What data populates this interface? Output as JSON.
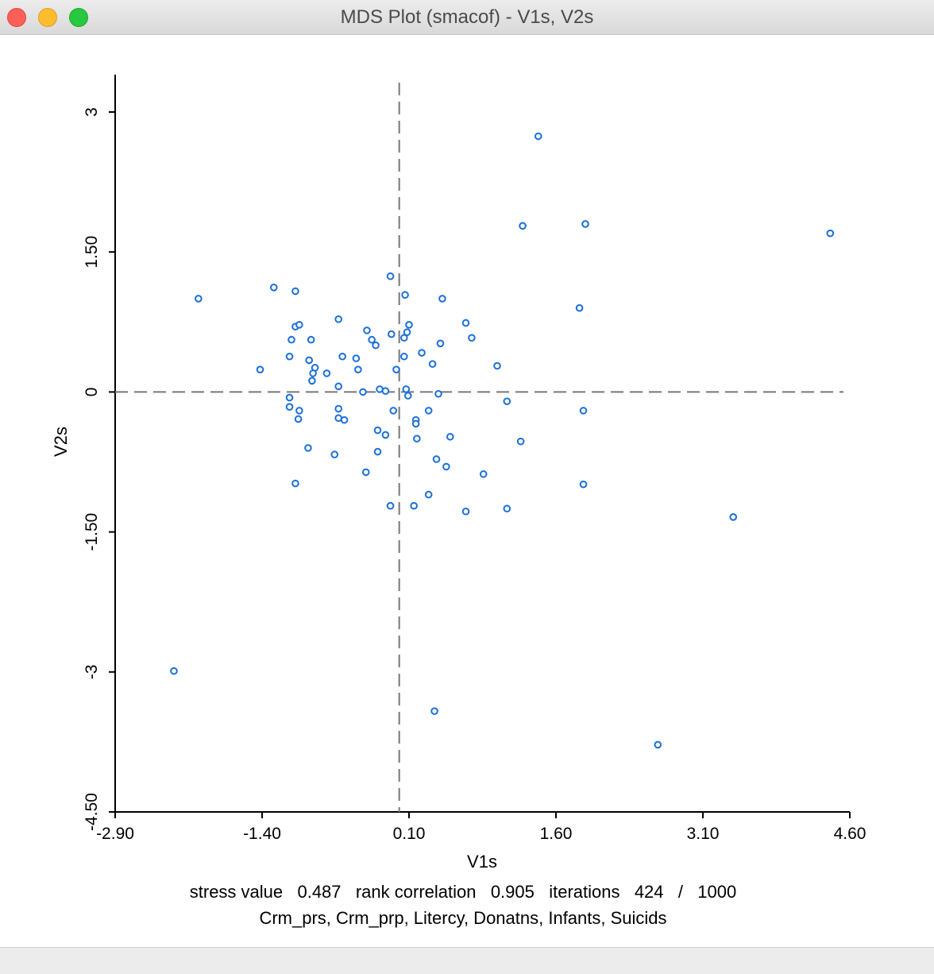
{
  "window": {
    "title": "MDS Plot (smacof) - V1s, V2s",
    "buttons": [
      "close",
      "minimize",
      "maximize"
    ]
  },
  "chart_data": {
    "type": "scatter",
    "xlabel": "V1s",
    "ylabel": "V2s",
    "xlim": [
      -2.9,
      4.6
    ],
    "ylim": [
      -4.5,
      3.4
    ],
    "xticks": [
      "-2.90",
      "-1.40",
      "0.10",
      "1.60",
      "3.10",
      "4.60"
    ],
    "yticks": [
      "-4.50",
      "-3",
      "-1.50",
      "0",
      "1.50",
      "3"
    ],
    "reference_lines": {
      "x": 0.0,
      "y": 0.0,
      "style": "dashed"
    },
    "point_color": "#1a6fdb",
    "points": [
      [
        1.42,
        2.74
      ],
      [
        1.26,
        1.78
      ],
      [
        1.9,
        1.8
      ],
      [
        4.4,
        1.7
      ],
      [
        -0.09,
        1.24
      ],
      [
        -1.28,
        1.12
      ],
      [
        -1.06,
        1.08
      ],
      [
        0.06,
        1.04
      ],
      [
        -2.05,
        1.0
      ],
      [
        0.44,
        1.0
      ],
      [
        1.84,
        0.9
      ],
      [
        -0.62,
        0.78
      ],
      [
        0.68,
        0.74
      ],
      [
        0.1,
        0.72
      ],
      [
        -1.06,
        0.7
      ],
      [
        -1.02,
        0.72
      ],
      [
        -0.33,
        0.66
      ],
      [
        -0.08,
        0.62
      ],
      [
        0.08,
        0.64
      ],
      [
        -0.28,
        0.56
      ],
      [
        -1.1,
        0.56
      ],
      [
        -0.9,
        0.56
      ],
      [
        0.05,
        0.58
      ],
      [
        0.74,
        0.58
      ],
      [
        -0.24,
        0.5
      ],
      [
        0.42,
        0.52
      ],
      [
        -1.12,
        0.38
      ],
      [
        -0.58,
        0.38
      ],
      [
        -0.44,
        0.36
      ],
      [
        0.05,
        0.38
      ],
      [
        0.23,
        0.42
      ],
      [
        -0.92,
        0.34
      ],
      [
        0.34,
        0.3
      ],
      [
        1.0,
        0.28
      ],
      [
        -1.42,
        0.24
      ],
      [
        -0.86,
        0.26
      ],
      [
        -0.42,
        0.24
      ],
      [
        -0.03,
        0.24
      ],
      [
        -0.88,
        0.2
      ],
      [
        -0.74,
        0.2
      ],
      [
        -0.89,
        0.12
      ],
      [
        -0.62,
        0.06
      ],
      [
        -0.2,
        0.03
      ],
      [
        0.07,
        0.03
      ],
      [
        -0.37,
        0.0
      ],
      [
        -0.14,
        0.01
      ],
      [
        0.4,
        -0.02
      ],
      [
        0.09,
        -0.04
      ],
      [
        -1.12,
        -0.06
      ],
      [
        1.1,
        -0.1
      ],
      [
        -1.12,
        -0.16
      ],
      [
        -1.02,
        -0.2
      ],
      [
        -0.06,
        -0.2
      ],
      [
        0.3,
        -0.2
      ],
      [
        1.88,
        -0.2
      ],
      [
        -0.62,
        -0.18
      ],
      [
        -0.62,
        -0.28
      ],
      [
        -1.03,
        -0.29
      ],
      [
        -0.56,
        -0.3
      ],
      [
        0.17,
        -0.3
      ],
      [
        0.17,
        -0.34
      ],
      [
        -0.22,
        -0.41
      ],
      [
        -0.14,
        -0.46
      ],
      [
        0.52,
        -0.48
      ],
      [
        0.18,
        -0.5
      ],
      [
        1.24,
        -0.53
      ],
      [
        -0.93,
        -0.6
      ],
      [
        -0.22,
        -0.64
      ],
      [
        -0.66,
        -0.67
      ],
      [
        0.38,
        -0.72
      ],
      [
        0.48,
        -0.8
      ],
      [
        -0.34,
        -0.86
      ],
      [
        0.86,
        -0.88
      ],
      [
        -1.06,
        -0.98
      ],
      [
        1.88,
        -0.99
      ],
      [
        0.3,
        -1.1
      ],
      [
        -0.09,
        -1.22
      ],
      [
        0.15,
        -1.22
      ],
      [
        1.1,
        -1.25
      ],
      [
        0.68,
        -1.28
      ],
      [
        3.41,
        -1.34
      ],
      [
        -2.3,
        -2.99
      ],
      [
        0.36,
        -3.42
      ],
      [
        2.64,
        -3.78
      ]
    ]
  },
  "footer": {
    "stats_line": "stress value   0.487   rank correlation   0.905   iterations   424   /   1000",
    "variables_line": "Crm_prs, Crm_prp, Litercy, Donatns, Infants, Suicids"
  }
}
